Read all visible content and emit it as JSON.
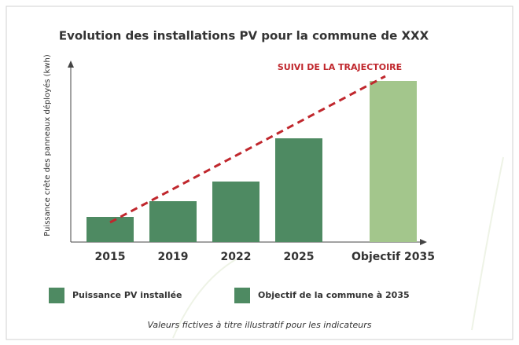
{
  "chart_data": {
    "type": "bar",
    "title": "Evolution des installations PV pour la commune de XXX",
    "y_label": "Puissance crête des panneaux déployés (kwh)",
    "categories": [
      "2015",
      "2019",
      "2022",
      "2025",
      "Objectif 2035"
    ],
    "values": [
      32,
      52,
      77,
      132,
      205
    ],
    "colors": [
      "#4e8a62",
      "#4e8a62",
      "#4e8a62",
      "#4e8a62",
      "#a3c68c"
    ],
    "ylim": [
      0,
      230
    ],
    "trend": {
      "name": "SUIVI DE LA TRAJECTOIRE",
      "color": "#c0272d",
      "from": 25,
      "to": 211
    },
    "legend": [
      {
        "name": "Puissance PV installée",
        "color": "#4e8a62"
      },
      {
        "name": "Objectif de la commune à 2035",
        "color": "#4e8a62"
      }
    ],
    "footnote": "Valeurs fictives à titre illustratif pour les indicateurs"
  }
}
